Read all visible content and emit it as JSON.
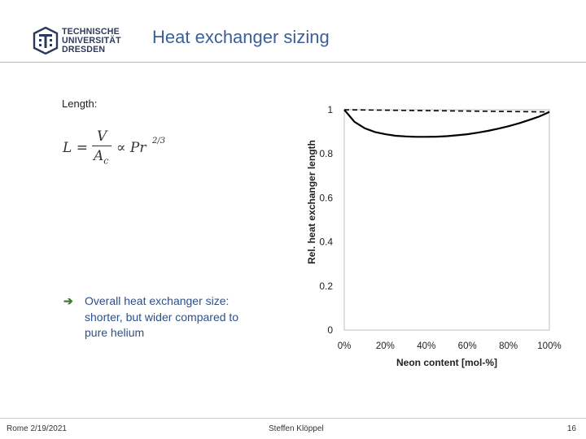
{
  "header": {
    "logo_lines": [
      "TECHNISCHE",
      "UNIVERSITÄT",
      "DRESDEN"
    ],
    "title": "Heat exchanger sizing"
  },
  "content": {
    "length_label": "Length:",
    "formula_lhs": "L =",
    "formula_num": "V",
    "formula_den": "A",
    "formula_den_sub": "c",
    "formula_prop": "∝ Pr",
    "formula_exp": "2/3",
    "bullet_lines": [
      "Overall heat exchanger size:",
      "shorter, but wider compared to",
      "pure helium"
    ]
  },
  "footer": {
    "left": "Rome 2/19/2021",
    "center": "Steffen Klöppel",
    "page": "16"
  },
  "colors": {
    "title": "#3d5f99",
    "bullet_arrow": "#3a7d2c",
    "bullet_text": "#2d4f8a"
  },
  "chart_data": {
    "type": "line",
    "xlabel": "Neon content [mol-%]",
    "ylabel": "Rel. heat exchanger length",
    "xlim": [
      0,
      100
    ],
    "ylim": [
      0,
      1
    ],
    "xticks": [
      "0%",
      "20%",
      "40%",
      "60%",
      "80%",
      "100%"
    ],
    "yticks": [
      "0",
      "0.2",
      "0.4",
      "0.6",
      "0.8",
      "1"
    ],
    "grid": false,
    "series": [
      {
        "style": "solid",
        "x": [
          0,
          5,
          10,
          15,
          20,
          25,
          30,
          35,
          40,
          45,
          50,
          55,
          60,
          65,
          70,
          75,
          80,
          85,
          90,
          95,
          100
        ],
        "y": [
          1.0,
          0.945,
          0.916,
          0.899,
          0.889,
          0.882,
          0.879,
          0.877,
          0.877,
          0.878,
          0.88,
          0.884,
          0.889,
          0.896,
          0.904,
          0.914,
          0.925,
          0.938,
          0.953,
          0.969,
          0.99
        ]
      },
      {
        "style": "dashed",
        "x": [
          0,
          100
        ],
        "y": [
          1.0,
          0.99
        ]
      }
    ]
  }
}
